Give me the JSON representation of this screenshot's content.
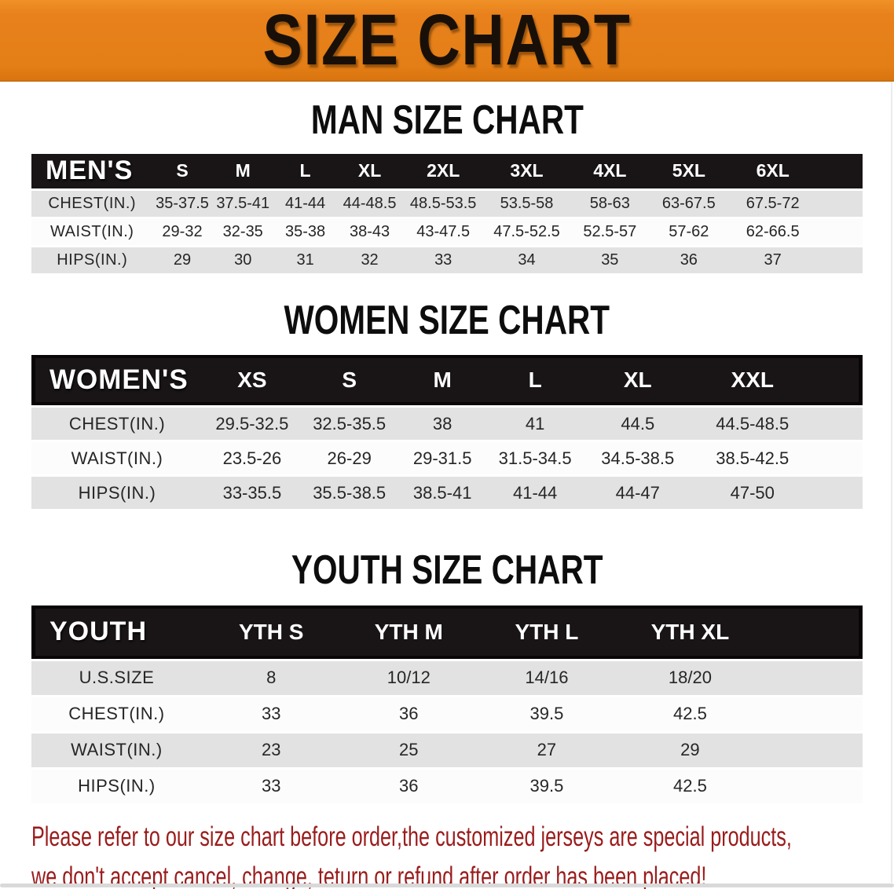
{
  "banner": {
    "title": "SIZE CHART"
  },
  "sections": {
    "men": {
      "heading": "MAN SIZE CHART",
      "label": "MEN'S",
      "columns": [
        "S",
        "M",
        "L",
        "XL",
        "2XL",
        "3XL",
        "4XL",
        "5XL",
        "6XL"
      ],
      "rows": [
        {
          "label": "CHEST(IN.)",
          "values": [
            "35-37.5",
            "37.5-41",
            "41-44",
            "44-48.5",
            "48.5-53.5",
            "53.5-58",
            "58-63",
            "63-67.5",
            "67.5-72"
          ]
        },
        {
          "label": "WAIST(IN.)",
          "values": [
            "29-32",
            "32-35",
            "35-38",
            "38-43",
            "43-47.5",
            "47.5-52.5",
            "52.5-57",
            "57-62",
            "62-66.5"
          ]
        },
        {
          "label": "HIPS(IN.)",
          "values": [
            "29",
            "30",
            "31",
            "32",
            "33",
            "34",
            "35",
            "36",
            "37"
          ]
        }
      ]
    },
    "women": {
      "heading": "WOMEN SIZE CHART",
      "label": "WOMEN'S",
      "columns": [
        "XS",
        "S",
        "M",
        "L",
        "XL",
        "XXL"
      ],
      "rows": [
        {
          "label": "CHEST(IN.)",
          "values": [
            "29.5-32.5",
            "32.5-35.5",
            "38",
            "41",
            "44.5",
            "44.5-48.5"
          ]
        },
        {
          "label": "WAIST(IN.)",
          "values": [
            "23.5-26",
            "26-29",
            "29-31.5",
            "31.5-34.5",
            "34.5-38.5",
            "38.5-42.5"
          ]
        },
        {
          "label": "HIPS(IN.)",
          "values": [
            "33-35.5",
            "35.5-38.5",
            "38.5-41",
            "41-44",
            "44-47",
            "47-50"
          ]
        }
      ]
    },
    "youth": {
      "heading": "YOUTH SIZE CHART",
      "label": "YOUTH",
      "columns": [
        "YTH S",
        "YTH M",
        "YTH L",
        "YTH XL"
      ],
      "rows": [
        {
          "label": "U.S.SIZE",
          "values": [
            "8",
            "10/12",
            "14/16",
            "18/20"
          ]
        },
        {
          "label": "CHEST(IN.)",
          "values": [
            "33",
            "36",
            "39.5",
            "42.5"
          ]
        },
        {
          "label": "WAIST(IN.)",
          "values": [
            "23",
            "25",
            "27",
            "29"
          ]
        },
        {
          "label": "HIPS(IN.)",
          "values": [
            "33",
            "36",
            "39.5",
            "42.5"
          ]
        }
      ]
    }
  },
  "footer": {
    "line1": "Please refer to our size chart before order,the customized jerseys are special products,",
    "line2": "we don't accept cancel, change, teturn or refund after order has been placed!"
  },
  "colors": {
    "banner_bg": "#e8811c",
    "banner_text": "#181008",
    "table_header_bg": "#191516",
    "row_stripe_gray": "#e2e2e2",
    "footer_text_red": "#9a1c1c"
  }
}
